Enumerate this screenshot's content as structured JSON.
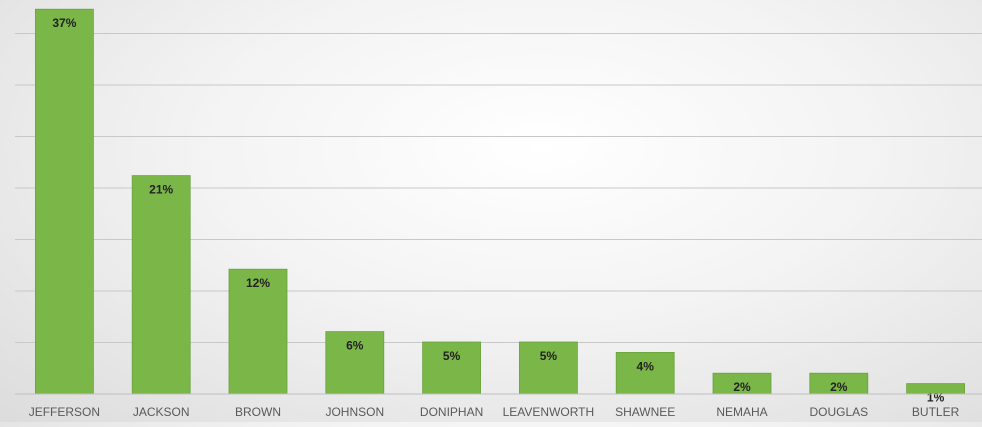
{
  "chart_data": {
    "type": "bar",
    "categories": [
      "JEFFERSON",
      "JACKSON",
      "BROWN",
      "JOHNSON",
      "DONIPHAN",
      "LEAVENWORTH",
      "SHAWNEE",
      "NEMAHA",
      "DOUGLAS",
      "BUTLER"
    ],
    "values": [
      37,
      21,
      12,
      6,
      5,
      5,
      4,
      2,
      2,
      1
    ],
    "value_labels": [
      "37%",
      "21%",
      "12%",
      "6%",
      "5%",
      "5%",
      "4%",
      "2%",
      "2%",
      "1%"
    ],
    "unit": "%",
    "ylim": [
      0,
      38
    ],
    "grid": true,
    "legend": "none",
    "colors": {
      "bar": "#7ab648",
      "bar_edge": "#6aa33c",
      "grid": "#c8c8c8",
      "axis_label": "#595959",
      "data_label": "#222222"
    }
  }
}
